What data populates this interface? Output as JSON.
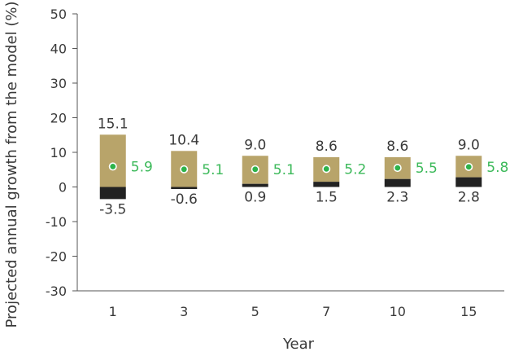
{
  "chart_data": {
    "type": "bar",
    "title": "",
    "xlabel": "Year",
    "ylabel": "Projected annual growth from the model (%)",
    "ylim": [
      -30,
      50
    ],
    "yticks": [
      50,
      40,
      30,
      20,
      10,
      0,
      -10,
      -20,
      -30
    ],
    "categories": [
      "1",
      "3",
      "5",
      "7",
      "10",
      "15"
    ],
    "series": [
      {
        "values": [
          15.1,
          10.4,
          9.0,
          8.6,
          8.6,
          9.0
        ]
      },
      {
        "values": [
          -3.5,
          -0.6,
          0.9,
          1.5,
          2.3,
          2.8
        ]
      },
      {
        "values": [
          5.9,
          5.1,
          5.1,
          5.2,
          5.5,
          5.8
        ]
      }
    ],
    "top_labels": [
      "15.1",
      "10.4",
      "9.0",
      "8.6",
      "8.6",
      "9.0"
    ],
    "bottom_labels": [
      "-3.5",
      "-0.6",
      "0.9",
      "1.5",
      "2.3",
      "2.8"
    ],
    "median_labels": [
      "5.9",
      "5.1",
      "5.1",
      "5.2",
      "5.5",
      "5.8"
    ],
    "grid": false,
    "colors": {
      "upper_range": "#b8a46a",
      "lower_range": "#222222",
      "median_marker": "#2db34a",
      "median_text": "#3cb95a",
      "axis": "#555555"
    }
  }
}
